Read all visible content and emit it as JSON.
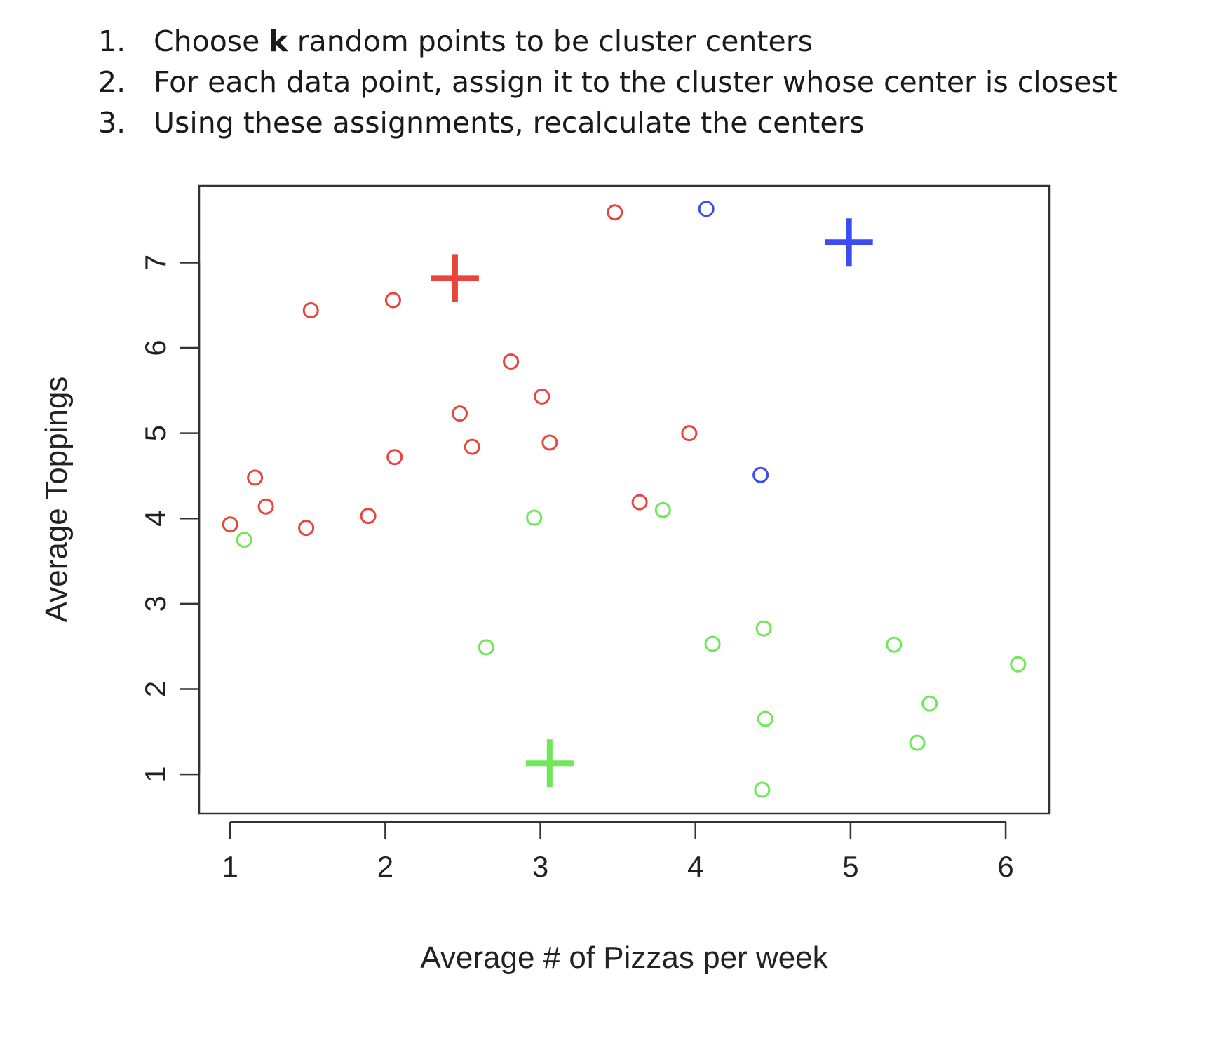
{
  "steps": [
    {
      "num": "1.",
      "pre": "Choose ",
      "bold": "k",
      "post": " random points to be cluster centers"
    },
    {
      "num": "2.",
      "pre": "For each data point, assign it to the cluster whose center is closest",
      "bold": "",
      "post": ""
    },
    {
      "num": "3.",
      "pre": "Using these assignments, recalculate the centers",
      "bold": "",
      "post": ""
    }
  ],
  "chart_data": {
    "type": "scatter",
    "xlabel": "Average # of Pizzas per week",
    "ylabel": "Average Toppings",
    "xlim": [
      0.8,
      6.28
    ],
    "ylim": [
      0.54,
      7.9
    ],
    "xticks": [
      1,
      2,
      3,
      4,
      5,
      6
    ],
    "yticks": [
      1,
      2,
      3,
      4,
      5,
      6,
      7
    ],
    "grid": false,
    "colors": {
      "red": "#e8453c",
      "blue": "#3a4cf2",
      "green": "#6ee857"
    },
    "series": [
      {
        "color": "#e8453c",
        "marker": "circle",
        "points": [
          [
            1.0,
            3.93
          ],
          [
            1.16,
            4.48
          ],
          [
            1.23,
            4.14
          ],
          [
            1.49,
            3.89
          ],
          [
            1.52,
            6.44
          ],
          [
            1.89,
            4.03
          ],
          [
            2.05,
            6.56
          ],
          [
            2.06,
            4.72
          ],
          [
            2.48,
            5.23
          ],
          [
            2.56,
            4.84
          ],
          [
            2.81,
            5.84
          ],
          [
            3.01,
            5.43
          ],
          [
            3.06,
            4.89
          ],
          [
            3.48,
            7.59
          ],
          [
            3.64,
            4.19
          ],
          [
            3.96,
            5.0
          ]
        ]
      },
      {
        "color": "#3a4cf2",
        "marker": "circle",
        "points": [
          [
            4.07,
            7.63
          ],
          [
            4.42,
            4.51
          ]
        ]
      },
      {
        "color": "#6ee857",
        "marker": "circle",
        "points": [
          [
            1.09,
            3.75
          ],
          [
            2.65,
            2.49
          ],
          [
            2.96,
            4.01
          ],
          [
            3.79,
            4.1
          ],
          [
            4.11,
            2.53
          ],
          [
            4.44,
            2.71
          ],
          [
            4.45,
            1.65
          ],
          [
            4.43,
            0.82
          ],
          [
            5.28,
            2.52
          ],
          [
            5.43,
            1.37
          ],
          [
            5.51,
            1.83
          ],
          [
            6.08,
            2.29
          ]
        ]
      }
    ],
    "centers": [
      {
        "color": "#e8453c",
        "x": 2.45,
        "y": 6.82
      },
      {
        "color": "#3a4cf2",
        "x": 4.99,
        "y": 7.24
      },
      {
        "color": "#6ee857",
        "x": 3.06,
        "y": 1.13
      }
    ]
  }
}
